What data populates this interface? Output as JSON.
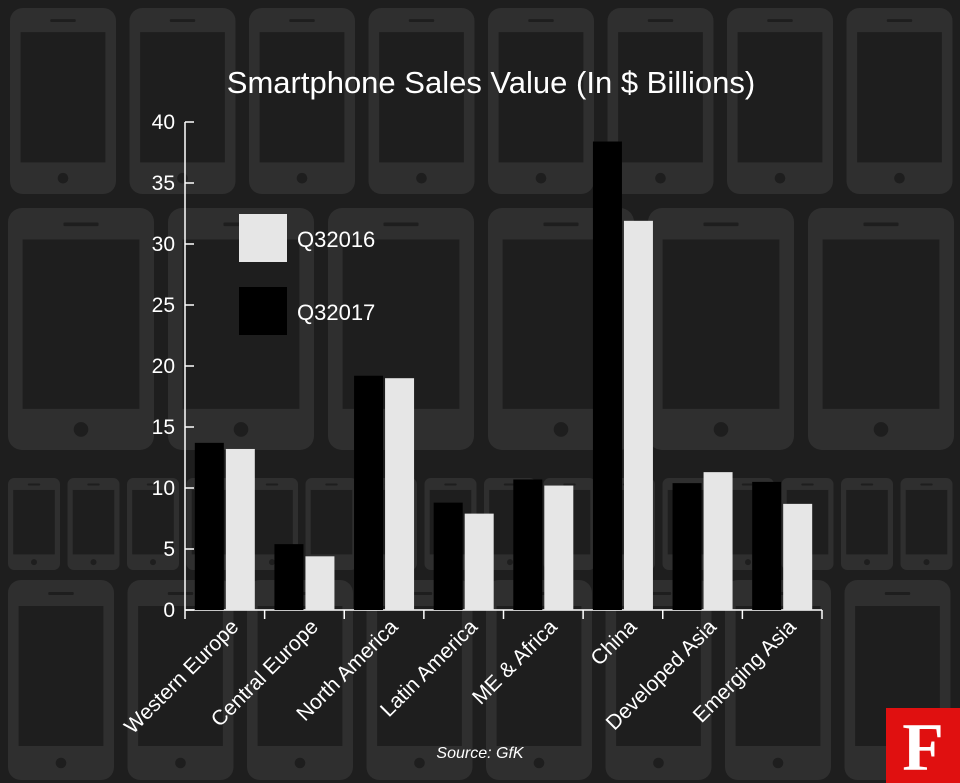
{
  "colors": {
    "background": "#1e1e1e",
    "phone_pattern": "#2f2f2f",
    "q32016": "#e6e6e6",
    "q32017": "#000000",
    "text": "#ffffff",
    "logo_bg": "#e01010"
  },
  "source": "Source: GfK",
  "logo": {
    "letter": "F",
    "icon": "forbes-f-logo"
  },
  "chart_data": {
    "type": "bar",
    "title": "Smartphone Sales Value (In $ Billions)",
    "xlabel": "",
    "ylabel": "",
    "ylim": [
      0,
      40
    ],
    "yticks": [
      0,
      5,
      10,
      15,
      20,
      25,
      30,
      35,
      40
    ],
    "categories": [
      "Western Europe",
      "Central Europe",
      "North America",
      "Latin America",
      "ME & Africa",
      "China",
      "Developed Asia",
      "Emerging Asia"
    ],
    "series": [
      {
        "name": "Q32017",
        "values": [
          13.7,
          5.4,
          19.2,
          8.8,
          10.7,
          38.4,
          10.4,
          10.5
        ]
      },
      {
        "name": "Q32016",
        "values": [
          13.2,
          4.4,
          19.0,
          7.9,
          10.2,
          31.9,
          11.3,
          8.7
        ]
      }
    ],
    "legend": {
      "placement": "top-left",
      "order": [
        "Q32016",
        "Q32017"
      ]
    },
    "grid": false
  }
}
